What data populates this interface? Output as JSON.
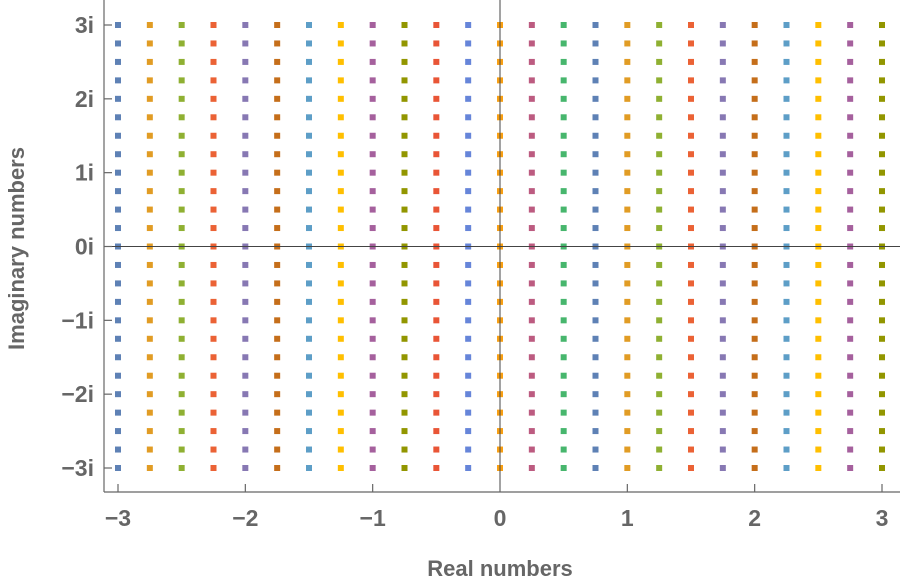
{
  "chart_data": {
    "type": "scatter",
    "xlabel": "Real numbers",
    "ylabel": "Imaginary numbers",
    "xlim": [
      -3,
      3
    ],
    "ylim": [
      -3,
      3
    ],
    "x_ticks": [
      {
        "value": -3,
        "label": "−3"
      },
      {
        "value": -2,
        "label": "−2"
      },
      {
        "value": -1,
        "label": "−1"
      },
      {
        "value": 0,
        "label": "0"
      },
      {
        "value": 1,
        "label": "1"
      },
      {
        "value": 2,
        "label": "2"
      },
      {
        "value": 3,
        "label": "3"
      }
    ],
    "y_ticks": [
      {
        "value": 3,
        "label": "3i"
      },
      {
        "value": 2,
        "label": "2i"
      },
      {
        "value": 1,
        "label": "1i"
      },
      {
        "value": 0,
        "label": "0i"
      },
      {
        "value": -1,
        "label": "−1i"
      },
      {
        "value": -2,
        "label": "−2i"
      },
      {
        "value": -3,
        "label": "−3i"
      }
    ],
    "grid": false,
    "legend": "none",
    "points_description": "Lattice of points with real parts from -3 to 3 in steps of 0.25 and imaginary parts from -3 to 3 in steps of 0.25; each vertical column of points shares one color.",
    "real_step": 0.25,
    "imag_step": 0.25,
    "columns": [
      {
        "re": -3.0,
        "color": "#5e81b5"
      },
      {
        "re": -2.75,
        "color": "#e19c24"
      },
      {
        "re": -2.5,
        "color": "#8fb032"
      },
      {
        "re": -2.25,
        "color": "#eb6235"
      },
      {
        "re": -2.0,
        "color": "#8778b3"
      },
      {
        "re": -1.75,
        "color": "#c56e1a"
      },
      {
        "re": -1.5,
        "color": "#5d9ec7"
      },
      {
        "re": -1.25,
        "color": "#ffbf00"
      },
      {
        "re": -1.0,
        "color": "#a5609d"
      },
      {
        "re": -0.75,
        "color": "#929600"
      },
      {
        "re": -0.5,
        "color": "#e95536"
      },
      {
        "re": -0.25,
        "color": "#6685d9"
      },
      {
        "re": 0.0,
        "color": "#f89f13"
      },
      {
        "re": 0.25,
        "color": "#bc5b80"
      },
      {
        "re": 0.5,
        "color": "#47b66d"
      },
      {
        "re": 0.75,
        "color": "#5e81b5"
      },
      {
        "re": 1.0,
        "color": "#e19c24"
      },
      {
        "re": 1.25,
        "color": "#8fb032"
      },
      {
        "re": 1.5,
        "color": "#eb6235"
      },
      {
        "re": 1.75,
        "color": "#8778b3"
      },
      {
        "re": 2.0,
        "color": "#c56e1a"
      },
      {
        "re": 2.25,
        "color": "#5d9ec7"
      },
      {
        "re": 2.5,
        "color": "#ffbf00"
      },
      {
        "re": 2.75,
        "color": "#a5609d"
      },
      {
        "re": 3.0,
        "color": "#929600"
      }
    ],
    "axis_color": "#666666"
  }
}
